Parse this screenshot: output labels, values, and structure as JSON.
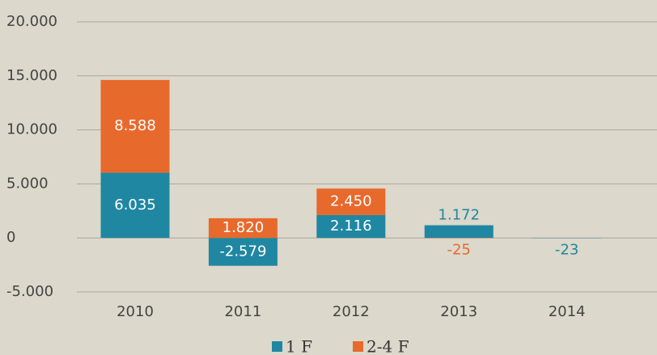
{
  "chart_data": {
    "type": "stacked_bar",
    "categories": [
      "2010",
      "2011",
      "2012",
      "2013",
      "2014"
    ],
    "series": [
      {
        "name": "1 F",
        "color": "#1f87a1",
        "values": [
          6035,
          -2579,
          2116,
          1172,
          -23
        ],
        "value_labels": [
          "6.035",
          "-2.579",
          "2.116",
          "1.172",
          "-23"
        ]
      },
      {
        "name": "2-4 F",
        "color": "#e8692c",
        "values": [
          8588,
          1820,
          2450,
          -25,
          null
        ],
        "value_labels": [
          "8.588",
          "1.820",
          "2.450",
          "-25",
          null
        ]
      }
    ],
    "ylim": [
      -5000,
      20000
    ],
    "yticks": [
      {
        "value": -5000,
        "label": "-5.000"
      },
      0,
      {
        "value": 5000,
        "label": "5.000"
      },
      {
        "value": 10000,
        "label": "10.000"
      },
      {
        "value": 15000,
        "label": "15.000"
      },
      {
        "value": 20000,
        "label": "20.000"
      }
    ],
    "grid": true,
    "legend": "bottom"
  }
}
